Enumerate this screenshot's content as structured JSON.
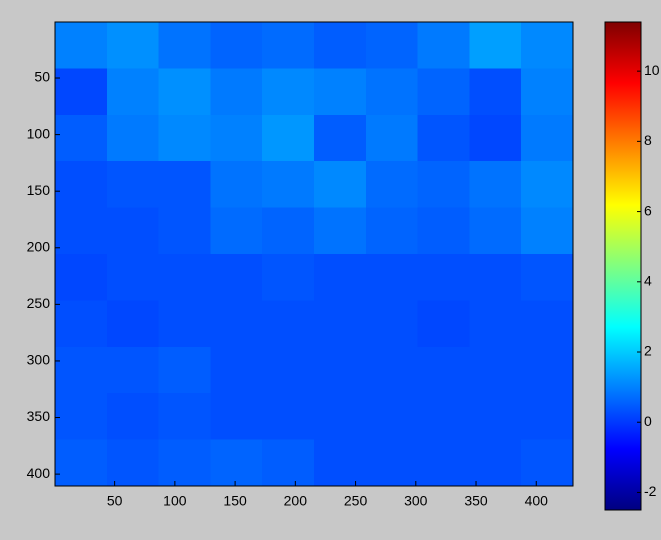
{
  "chart_data": {
    "type": "heatmap",
    "colormap": "jet",
    "xbins": [
      0.5,
      43.5,
      86.5,
      129.5,
      172.5,
      215.5,
      258.5,
      301.5,
      344.5,
      387.5,
      430.5
    ],
    "ybins": [
      0.5,
      41.5,
      82.5,
      123.5,
      164.5,
      205.5,
      246.5,
      287.5,
      328.5,
      369.5,
      410.5
    ],
    "values": [
      [
        1.0,
        1.2,
        0.8,
        0.6,
        0.7,
        0.5,
        0.6,
        0.9,
        1.4,
        1.1
      ],
      [
        0.2,
        1.0,
        1.2,
        0.9,
        1.1,
        1.0,
        0.8,
        0.6,
        0.3,
        1.0
      ],
      [
        0.5,
        0.9,
        1.1,
        1.0,
        1.3,
        0.5,
        0.9,
        0.4,
        0.2,
        0.9
      ],
      [
        0.3,
        0.4,
        0.4,
        0.8,
        0.9,
        1.1,
        0.7,
        0.6,
        0.8,
        1.1
      ],
      [
        0.3,
        0.3,
        0.4,
        0.7,
        0.6,
        0.8,
        0.6,
        0.5,
        0.7,
        1.0
      ],
      [
        0.2,
        0.3,
        0.3,
        0.3,
        0.4,
        0.3,
        0.3,
        0.3,
        0.3,
        0.4
      ],
      [
        0.3,
        0.2,
        0.3,
        0.3,
        0.3,
        0.3,
        0.3,
        0.2,
        0.3,
        0.3
      ],
      [
        0.4,
        0.4,
        0.5,
        0.3,
        0.3,
        0.3,
        0.3,
        0.3,
        0.3,
        0.3
      ],
      [
        0.4,
        0.3,
        0.4,
        0.3,
        0.3,
        0.3,
        0.3,
        0.3,
        0.3,
        0.3
      ],
      [
        0.5,
        0.4,
        0.5,
        0.6,
        0.5,
        0.3,
        0.3,
        0.3,
        0.3,
        0.4
      ]
    ],
    "xlim": [
      0.5,
      430.5
    ],
    "xticks": [
      50,
      100,
      150,
      200,
      250,
      300,
      350,
      400
    ],
    "ylim": [
      0.5,
      410.5
    ],
    "yticks": [
      50,
      100,
      150,
      200,
      250,
      300,
      350,
      400
    ],
    "y_reversed": true,
    "clim": [
      -2.5,
      11.4
    ],
    "cticks": [
      -2,
      0,
      2,
      4,
      6,
      8,
      10
    ]
  }
}
